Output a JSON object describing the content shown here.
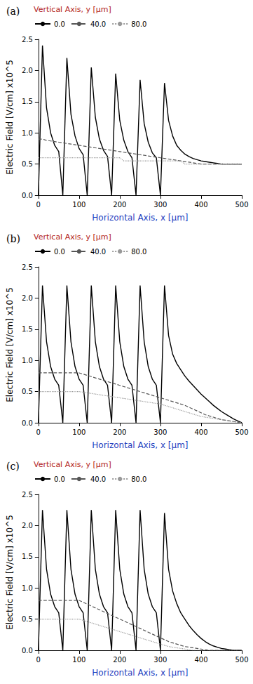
{
  "chart_data": [
    {
      "type": "line",
      "title": "(a)",
      "xlabel": "Horizontal Axis, x [µm]",
      "ylabel": "Electric Field [V/cm] x10^5",
      "legend_title": "Vertical Axis, y [µm]",
      "x": [
        0,
        10,
        20,
        30,
        40,
        50,
        60,
        70,
        80,
        90,
        100,
        110,
        120,
        130,
        140,
        150,
        160,
        170,
        180,
        190,
        200,
        210,
        220,
        230,
        240,
        250,
        260,
        270,
        280,
        290,
        300,
        310,
        320,
        330,
        340,
        350,
        360,
        370,
        380,
        390,
        400,
        410,
        420,
        430,
        440,
        450,
        460,
        470,
        480,
        490,
        500
      ],
      "xlim": [
        0,
        500
      ],
      "xticks": [
        0,
        100,
        200,
        300,
        400,
        500
      ],
      "ylim": [
        0,
        2.5
      ],
      "yticks": [
        {
          "value": 0,
          "label": "0.0"
        },
        0.5,
        {
          "value": 1,
          "label": "1.0"
        },
        1.5,
        {
          "value": 2,
          "label": "2.0"
        },
        2.5
      ],
      "grid": false,
      "legend": "top",
      "series": [
        {
          "name": "0.0",
          "color": "#000000",
          "line_style": "solid",
          "values": [
            0,
            2.4,
            1.4,
            1.0,
            0.8,
            0.7,
            0,
            2.2,
            1.3,
            0.95,
            0.75,
            0.65,
            0,
            2.05,
            1.25,
            0.9,
            0.72,
            0.62,
            0,
            1.95,
            1.2,
            0.88,
            0.7,
            0.6,
            0,
            1.85,
            1.15,
            0.85,
            0.68,
            0.6,
            0,
            1.8,
            1.2,
            0.95,
            0.8,
            0.72,
            0.66,
            0.62,
            0.59,
            0.57,
            0.55,
            0.54,
            0.53,
            0.52,
            0.51,
            0.5,
            0.5,
            0.5,
            0.5,
            0.5,
            0.5
          ]
        },
        {
          "name": "40.0",
          "color": "#555555",
          "line_style": "dashed",
          "values": [
            0.9,
            0.9,
            0.88,
            0.87,
            0.86,
            0.85,
            0.84,
            0.83,
            0.82,
            0.81,
            0.8,
            0.79,
            0.78,
            0.77,
            0.76,
            0.75,
            0.74,
            0.73,
            0.72,
            0.71,
            0.7,
            0.69,
            0.68,
            0.67,
            0.66,
            0.65,
            0.64,
            0.63,
            0.62,
            0.61,
            0.6,
            0.59,
            0.58,
            0.57,
            0.56,
            0.55,
            0.54,
            0.53,
            0.52,
            0.51,
            0.5,
            0.5,
            0.5,
            0.5,
            0.5,
            0.5,
            0.5,
            0.5,
            0.5,
            0.5,
            0.5
          ]
        },
        {
          "name": "80.0",
          "color": "#999999",
          "line_style": "dotted",
          "values": [
            0.6,
            0.6,
            0.6,
            0.6,
            0.6,
            0.6,
            0.6,
            0.6,
            0.6,
            0.6,
            0.6,
            0.6,
            0.6,
            0.6,
            0.6,
            0.6,
            0.6,
            0.6,
            0.6,
            0.6,
            0.6,
            0.55,
            0.55,
            0.55,
            0.55,
            0.55,
            0.55,
            0.55,
            0.55,
            0.55,
            0.55,
            0.55,
            0.55,
            0.55,
            0.55,
            0.55,
            0.5,
            0.5,
            0.5,
            0.5,
            0.5,
            0.5,
            0.5,
            0.5,
            0.5,
            0.5,
            0.5,
            0.5,
            0.5,
            0.5,
            0.5
          ]
        }
      ]
    },
    {
      "type": "line",
      "title": "(b)",
      "xlabel": "Horizontal Axis, x [µm]",
      "ylabel": "Electric Field [V/cm] x10^5",
      "legend_title": "Vertical Axis, y [µm]",
      "x": [
        0,
        10,
        20,
        30,
        40,
        50,
        60,
        70,
        80,
        90,
        100,
        110,
        120,
        130,
        140,
        150,
        160,
        170,
        180,
        190,
        200,
        210,
        220,
        230,
        240,
        250,
        260,
        270,
        280,
        290,
        300,
        310,
        320,
        330,
        340,
        350,
        360,
        370,
        380,
        390,
        400,
        410,
        420,
        430,
        440,
        450,
        460,
        470,
        480,
        490,
        500
      ],
      "xlim": [
        0,
        500
      ],
      "xticks": [
        0,
        100,
        200,
        300,
        400,
        500
      ],
      "ylim": [
        0,
        2.5
      ],
      "yticks": [
        {
          "value": 0,
          "label": "0.0"
        },
        0.5,
        {
          "value": 1,
          "label": "1.0"
        },
        1.5,
        {
          "value": 2,
          "label": "2.0"
        },
        2.5
      ],
      "grid": false,
      "legend": "top",
      "series": [
        {
          "name": "0.0",
          "color": "#000000",
          "line_style": "solid",
          "values": [
            0,
            2.2,
            1.3,
            0.9,
            0.7,
            0.6,
            0,
            2.2,
            1.3,
            0.9,
            0.7,
            0.6,
            0,
            2.2,
            1.3,
            0.9,
            0.7,
            0.6,
            0,
            2.2,
            1.3,
            0.9,
            0.7,
            0.6,
            0,
            2.2,
            1.3,
            0.9,
            0.7,
            0.6,
            0,
            2.2,
            1.4,
            1.1,
            0.95,
            0.85,
            0.75,
            0.67,
            0.6,
            0.53,
            0.46,
            0.4,
            0.34,
            0.28,
            0.23,
            0.18,
            0.14,
            0.1,
            0.06,
            0.03,
            0
          ]
        },
        {
          "name": "40.0",
          "color": "#555555",
          "line_style": "dashed",
          "values": [
            0.8,
            0.8,
            0.8,
            0.8,
            0.8,
            0.8,
            0.8,
            0.8,
            0.8,
            0.8,
            0.8,
            0.78,
            0.76,
            0.74,
            0.72,
            0.7,
            0.68,
            0.66,
            0.64,
            0.62,
            0.6,
            0.58,
            0.56,
            0.54,
            0.52,
            0.5,
            0.48,
            0.46,
            0.44,
            0.42,
            0.4,
            0.38,
            0.36,
            0.34,
            0.32,
            0.3,
            0.28,
            0.25,
            0.22,
            0.19,
            0.16,
            0.13,
            0.11,
            0.09,
            0.07,
            0.05,
            0.04,
            0.03,
            0.02,
            0.01,
            0
          ]
        },
        {
          "name": "80.0",
          "color": "#999999",
          "line_style": "dotted",
          "values": [
            0.5,
            0.5,
            0.5,
            0.5,
            0.5,
            0.5,
            0.5,
            0.5,
            0.5,
            0.5,
            0.5,
            0.49,
            0.48,
            0.47,
            0.46,
            0.45,
            0.44,
            0.43,
            0.42,
            0.41,
            0.4,
            0.39,
            0.38,
            0.37,
            0.36,
            0.35,
            0.34,
            0.33,
            0.32,
            0.31,
            0.3,
            0.28,
            0.26,
            0.24,
            0.22,
            0.2,
            0.18,
            0.16,
            0.14,
            0.12,
            0.1,
            0.09,
            0.08,
            0.07,
            0.06,
            0.05,
            0.04,
            0.03,
            0.02,
            0.01,
            0
          ]
        }
      ]
    },
    {
      "type": "line",
      "title": "(c)",
      "xlabel": "Horizontal Axis, x [µm]",
      "ylabel": "Electric Field [V/cm] x10^5",
      "legend_title": "Vertical Axis, y [µm]",
      "x": [
        0,
        10,
        20,
        30,
        40,
        50,
        60,
        70,
        80,
        90,
        100,
        110,
        120,
        130,
        140,
        150,
        160,
        170,
        180,
        190,
        200,
        210,
        220,
        230,
        240,
        250,
        260,
        270,
        280,
        290,
        300,
        310,
        320,
        330,
        340,
        350,
        360,
        370,
        380,
        390,
        400,
        410,
        420,
        430,
        440,
        450,
        460,
        470,
        480,
        490,
        500
      ],
      "xlim": [
        0,
        500
      ],
      "xticks": [
        0,
        100,
        200,
        300,
        400,
        500
      ],
      "ylim": [
        0,
        2.5
      ],
      "yticks": [
        {
          "value": 0,
          "label": "0.0"
        },
        0.5,
        {
          "value": 1,
          "label": "1.0"
        },
        1.5,
        {
          "value": 2,
          "label": "2.0"
        },
        2.5
      ],
      "grid": false,
      "legend": "top",
      "series": [
        {
          "name": "0.0",
          "color": "#000000",
          "line_style": "solid",
          "values": [
            0,
            2.25,
            1.3,
            0.9,
            0.7,
            0.6,
            0,
            2.25,
            1.3,
            0.9,
            0.7,
            0.6,
            0,
            2.25,
            1.3,
            0.9,
            0.7,
            0.6,
            0,
            2.25,
            1.3,
            0.9,
            0.7,
            0.6,
            0,
            2.25,
            1.3,
            0.9,
            0.7,
            0.6,
            0,
            2.2,
            1.3,
            0.95,
            0.75,
            0.6,
            0.5,
            0.4,
            0.32,
            0.25,
            0.19,
            0.14,
            0.1,
            0.07,
            0.05,
            0.03,
            0.02,
            0.01,
            0,
            0,
            0
          ]
        },
        {
          "name": "40.0",
          "color": "#555555",
          "line_style": "dashed",
          "values": [
            0.8,
            0.8,
            0.8,
            0.8,
            0.8,
            0.8,
            0.8,
            0.8,
            0.8,
            0.8,
            0.8,
            0.77,
            0.74,
            0.71,
            0.68,
            0.65,
            0.62,
            0.59,
            0.56,
            0.53,
            0.5,
            0.47,
            0.44,
            0.41,
            0.38,
            0.35,
            0.32,
            0.29,
            0.26,
            0.23,
            0.2,
            0.17,
            0.14,
            0.12,
            0.1,
            0.08,
            0.06,
            0.05,
            0.04,
            0.03,
            0.02,
            0.01,
            0,
            0,
            0,
            0,
            0,
            0,
            0,
            0,
            0
          ]
        },
        {
          "name": "80.0",
          "color": "#999999",
          "line_style": "dotted",
          "values": [
            0.5,
            0.5,
            0.5,
            0.5,
            0.5,
            0.5,
            0.5,
            0.5,
            0.5,
            0.5,
            0.5,
            0.48,
            0.46,
            0.44,
            0.42,
            0.4,
            0.38,
            0.36,
            0.34,
            0.32,
            0.3,
            0.28,
            0.26,
            0.24,
            0.22,
            0.2,
            0.18,
            0.16,
            0.14,
            0.12,
            0.1,
            0.08,
            0.06,
            0.05,
            0.04,
            0.03,
            0.02,
            0.01,
            0,
            0,
            0,
            0,
            0,
            0,
            0,
            0,
            0,
            0,
            0,
            0,
            0
          ]
        }
      ]
    }
  ]
}
